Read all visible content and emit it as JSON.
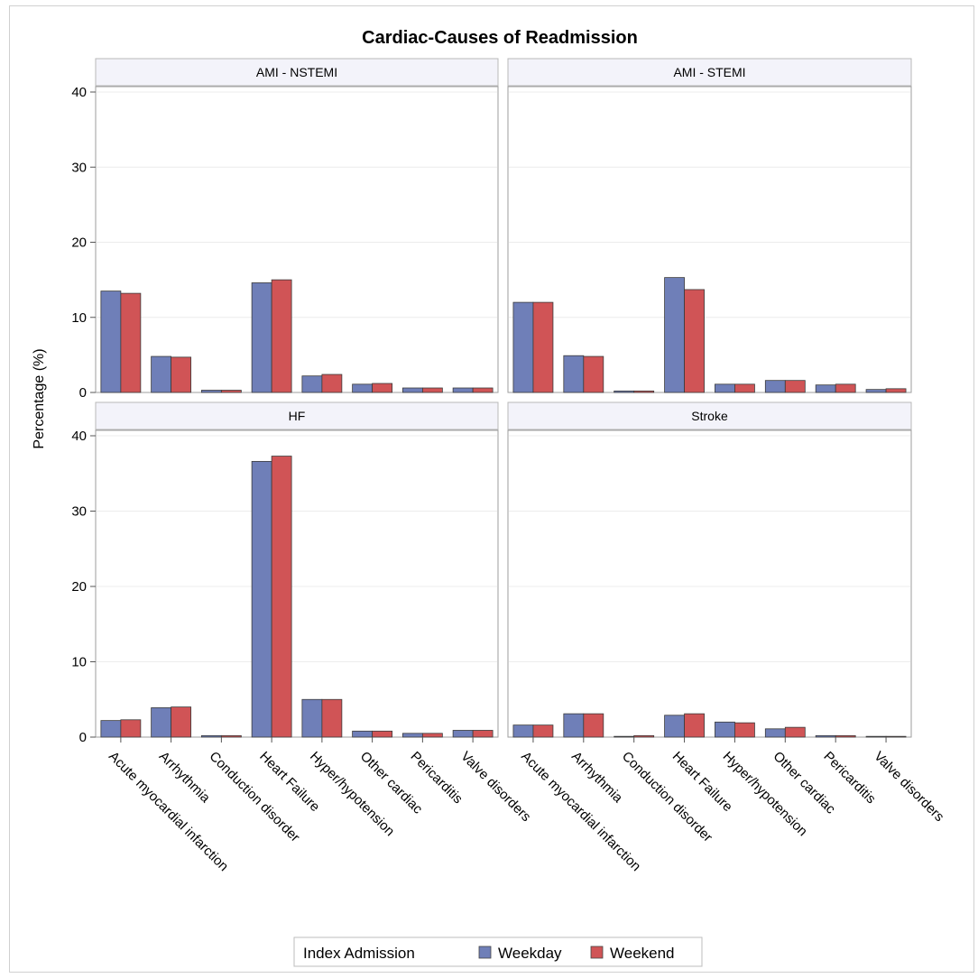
{
  "chart_data": {
    "type": "bar",
    "title": "Cardiac-Causes of Readmission",
    "ylabel": "Percentage (%)",
    "xlabel": "",
    "ylim": [
      0,
      40
    ],
    "yticks": [
      0,
      10,
      20,
      30,
      40
    ],
    "grid": true,
    "categories": [
      "Acute myocardial infarction",
      "Arrhythmia",
      "Conduction disorder",
      "Heart Failure",
      "Hyper/hypotension",
      "Other cardiac",
      "Pericarditis",
      "Valve disorders"
    ],
    "legend": {
      "title": "Index Admission",
      "placement": "bottom",
      "entries": [
        "Weekday",
        "Weekend"
      ]
    },
    "colors": {
      "Weekday": "#6f7fb8",
      "Weekend": "#d05456"
    },
    "panels": [
      {
        "name": "AMI - NSTEMI",
        "series": [
          {
            "name": "Weekday",
            "values": [
              13.5,
              4.8,
              0.3,
              14.6,
              2.2,
              1.1,
              0.6,
              0.6
            ]
          },
          {
            "name": "Weekend",
            "values": [
              13.2,
              4.7,
              0.3,
              15.0,
              2.4,
              1.2,
              0.6,
              0.6
            ]
          }
        ]
      },
      {
        "name": "AMI - STEMI",
        "series": [
          {
            "name": "Weekday",
            "values": [
              12.0,
              4.9,
              0.2,
              15.3,
              1.1,
              1.6,
              1.0,
              0.4
            ]
          },
          {
            "name": "Weekend",
            "values": [
              12.0,
              4.8,
              0.2,
              13.7,
              1.1,
              1.6,
              1.1,
              0.5
            ]
          }
        ]
      },
      {
        "name": "HF",
        "series": [
          {
            "name": "Weekday",
            "values": [
              2.2,
              3.9,
              0.2,
              36.6,
              5.0,
              0.8,
              0.5,
              0.9
            ]
          },
          {
            "name": "Weekend",
            "values": [
              2.3,
              4.0,
              0.2,
              37.3,
              5.0,
              0.8,
              0.5,
              0.9
            ]
          }
        ]
      },
      {
        "name": "Stroke",
        "series": [
          {
            "name": "Weekday",
            "values": [
              1.6,
              3.1,
              0.1,
              2.9,
              2.0,
              1.1,
              0.2,
              0.1
            ]
          },
          {
            "name": "Weekend",
            "values": [
              1.6,
              3.1,
              0.2,
              3.1,
              1.9,
              1.3,
              0.2,
              0.1
            ]
          }
        ]
      }
    ]
  }
}
